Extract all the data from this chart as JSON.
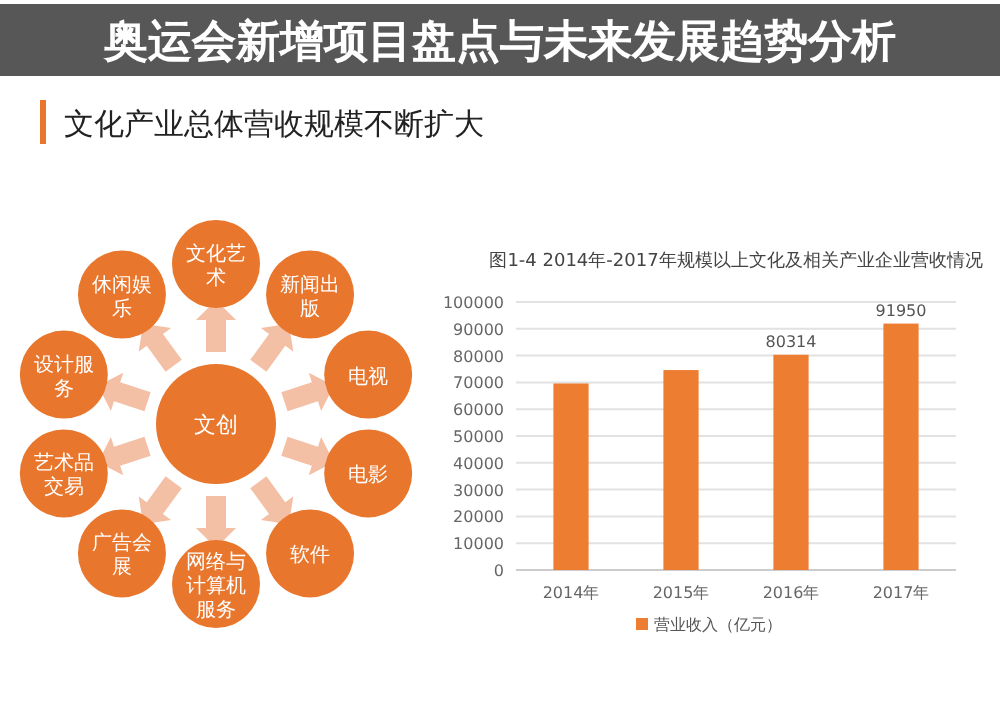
{
  "chart_data": [
    {
      "type": "other",
      "title": "奥运会新增项目盘点与未来发展趋势分析",
      "subtitle": "文化产业总体营收规模不断扩大",
      "color": "#e8762d",
      "annotations": [
        "文创",
        "文化艺术",
        "新闻出版",
        "电视",
        "电影",
        "软件",
        "网络与计算机服务",
        "广告会展",
        "艺术品交易",
        "设计服务",
        "休闲娱乐"
      ]
    },
    {
      "type": "bar",
      "title": "图1-4 2014年-2017年规模以上文化及相关产业企业营收情况",
      "categories": [
        "2014年",
        "2015年",
        "2016年",
        "2017年"
      ],
      "series": [
        {
          "name": "营业收入（亿元）",
          "color": "#ed7d31",
          "values": [
            69600,
            74600,
            80314,
            91950
          ],
          "value_labels": [
            null,
            null,
            "80314",
            "91950"
          ]
        }
      ],
      "ylim": [
        0,
        100000
      ],
      "yticks": [
        0,
        10000,
        20000,
        30000,
        40000,
        50000,
        60000,
        70000,
        80000,
        90000,
        100000
      ],
      "grid": "y",
      "legend": "bottom"
    }
  ]
}
